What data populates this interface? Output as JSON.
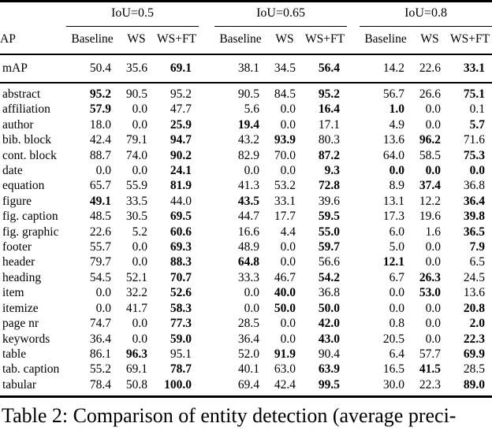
{
  "table": {
    "row_header_label": "AP",
    "groups": [
      {
        "label": "IoU=0.5"
      },
      {
        "label": "IoU=0.65"
      },
      {
        "label": "IoU=0.8"
      }
    ],
    "col_headers": [
      "Baseline",
      "WS",
      "WS+FT"
    ],
    "summary_row": {
      "label": "mAP",
      "cells": [
        {
          "t": "50.4",
          "b": false
        },
        {
          "t": "35.6",
          "b": false
        },
        {
          "t": "69.1",
          "b": true
        },
        {
          "t": "38.1",
          "b": false
        },
        {
          "t": "34.5",
          "b": false
        },
        {
          "t": "56.4",
          "b": true
        },
        {
          "t": "14.2",
          "b": false
        },
        {
          "t": "22.6",
          "b": false
        },
        {
          "t": "33.1",
          "b": true
        }
      ]
    },
    "rows": [
      {
        "label": "abstract",
        "cells": [
          {
            "t": "95.2",
            "b": true
          },
          {
            "t": "90.5",
            "b": false
          },
          {
            "t": "95.2",
            "b": false
          },
          {
            "t": "90.5",
            "b": false
          },
          {
            "t": "84.5",
            "b": false
          },
          {
            "t": "95.2",
            "b": true
          },
          {
            "t": "56.7",
            "b": false
          },
          {
            "t": "26.6",
            "b": false
          },
          {
            "t": "75.1",
            "b": true
          }
        ]
      },
      {
        "label": "affiliation",
        "cells": [
          {
            "t": "57.9",
            "b": true
          },
          {
            "t": "0.0",
            "b": false
          },
          {
            "t": "47.7",
            "b": false
          },
          {
            "t": "5.6",
            "b": false
          },
          {
            "t": "0.0",
            "b": false
          },
          {
            "t": "16.4",
            "b": true
          },
          {
            "t": "1.0",
            "b": true
          },
          {
            "t": "0.0",
            "b": false
          },
          {
            "t": "0.1",
            "b": false
          }
        ]
      },
      {
        "label": "author",
        "cells": [
          {
            "t": "18.0",
            "b": false
          },
          {
            "t": "0.0",
            "b": false
          },
          {
            "t": "25.9",
            "b": true
          },
          {
            "t": "19.4",
            "b": true
          },
          {
            "t": "0.0",
            "b": false
          },
          {
            "t": "17.1",
            "b": false
          },
          {
            "t": "4.9",
            "b": false
          },
          {
            "t": "0.0",
            "b": false
          },
          {
            "t": "5.7",
            "b": true
          }
        ]
      },
      {
        "label": "bib. block",
        "cells": [
          {
            "t": "42.4",
            "b": false
          },
          {
            "t": "79.1",
            "b": false
          },
          {
            "t": "94.7",
            "b": true
          },
          {
            "t": "43.2",
            "b": false
          },
          {
            "t": "93.9",
            "b": true
          },
          {
            "t": "80.3",
            "b": false
          },
          {
            "t": "13.6",
            "b": false
          },
          {
            "t": "96.2",
            "b": true
          },
          {
            "t": "71.6",
            "b": false
          }
        ]
      },
      {
        "label": "cont. block",
        "cells": [
          {
            "t": "88.7",
            "b": false
          },
          {
            "t": "74.0",
            "b": false
          },
          {
            "t": "90.2",
            "b": true
          },
          {
            "t": "82.9",
            "b": false
          },
          {
            "t": "70.0",
            "b": false
          },
          {
            "t": "87.2",
            "b": true
          },
          {
            "t": "64.0",
            "b": false
          },
          {
            "t": "58.5",
            "b": false
          },
          {
            "t": "75.3",
            "b": true
          }
        ]
      },
      {
        "label": "date",
        "cells": [
          {
            "t": "0.0",
            "b": false
          },
          {
            "t": "0.0",
            "b": false
          },
          {
            "t": "24.1",
            "b": true
          },
          {
            "t": "0.0",
            "b": false
          },
          {
            "t": "0.0",
            "b": false
          },
          {
            "t": "9.3",
            "b": true
          },
          {
            "t": "0.0",
            "b": true
          },
          {
            "t": "0.0",
            "b": true
          },
          {
            "t": "0.0",
            "b": true
          }
        ]
      },
      {
        "label": "equation",
        "cells": [
          {
            "t": "65.7",
            "b": false
          },
          {
            "t": "55.9",
            "b": false
          },
          {
            "t": "81.9",
            "b": true
          },
          {
            "t": "41.3",
            "b": false
          },
          {
            "t": "53.2",
            "b": false
          },
          {
            "t": "72.8",
            "b": true
          },
          {
            "t": "8.9",
            "b": false
          },
          {
            "t": "37.4",
            "b": true
          },
          {
            "t": "36.8",
            "b": false
          }
        ]
      },
      {
        "label": "figure",
        "cells": [
          {
            "t": "49.1",
            "b": true
          },
          {
            "t": "33.5",
            "b": false
          },
          {
            "t": "44.0",
            "b": false
          },
          {
            "t": "43.5",
            "b": true
          },
          {
            "t": "33.1",
            "b": false
          },
          {
            "t": "39.6",
            "b": false
          },
          {
            "t": "13.1",
            "b": false
          },
          {
            "t": "12.2",
            "b": false
          },
          {
            "t": "36.4",
            "b": true
          }
        ]
      },
      {
        "label": "fig. caption",
        "cells": [
          {
            "t": "48.5",
            "b": false
          },
          {
            "t": "30.5",
            "b": false
          },
          {
            "t": "69.5",
            "b": true
          },
          {
            "t": "44.7",
            "b": false
          },
          {
            "t": "17.7",
            "b": false
          },
          {
            "t": "59.5",
            "b": true
          },
          {
            "t": "17.3",
            "b": false
          },
          {
            "t": "19.6",
            "b": false
          },
          {
            "t": "39.8",
            "b": true
          }
        ]
      },
      {
        "label": "fig. graphic",
        "cells": [
          {
            "t": "22.6",
            "b": false
          },
          {
            "t": "5.2",
            "b": false
          },
          {
            "t": "60.6",
            "b": true
          },
          {
            "t": "16.6",
            "b": false
          },
          {
            "t": "4.4",
            "b": false
          },
          {
            "t": "55.0",
            "b": true
          },
          {
            "t": "6.0",
            "b": false
          },
          {
            "t": "1.6",
            "b": false
          },
          {
            "t": "36.5",
            "b": true
          }
        ]
      },
      {
        "label": "footer",
        "cells": [
          {
            "t": "55.7",
            "b": false
          },
          {
            "t": "0.0",
            "b": false
          },
          {
            "t": "69.3",
            "b": true
          },
          {
            "t": "48.9",
            "b": false
          },
          {
            "t": "0.0",
            "b": false
          },
          {
            "t": "59.7",
            "b": true
          },
          {
            "t": "5.0",
            "b": false
          },
          {
            "t": "0.0",
            "b": false
          },
          {
            "t": "7.9",
            "b": true
          }
        ]
      },
      {
        "label": "header",
        "cells": [
          {
            "t": "79.7",
            "b": false
          },
          {
            "t": "0.0",
            "b": false
          },
          {
            "t": "88.3",
            "b": true
          },
          {
            "t": "64.8",
            "b": true
          },
          {
            "t": "0.0",
            "b": false
          },
          {
            "t": "56.6",
            "b": false
          },
          {
            "t": "12.1",
            "b": true
          },
          {
            "t": "0.0",
            "b": false
          },
          {
            "t": "6.5",
            "b": false
          }
        ]
      },
      {
        "label": "heading",
        "cells": [
          {
            "t": "54.5",
            "b": false
          },
          {
            "t": "52.1",
            "b": false
          },
          {
            "t": "70.7",
            "b": true
          },
          {
            "t": "33.3",
            "b": false
          },
          {
            "t": "46.7",
            "b": false
          },
          {
            "t": "54.2",
            "b": true
          },
          {
            "t": "6.7",
            "b": false
          },
          {
            "t": "26.3",
            "b": true
          },
          {
            "t": "24.5",
            "b": false
          }
        ]
      },
      {
        "label": "item",
        "cells": [
          {
            "t": "0.0",
            "b": false
          },
          {
            "t": "32.2",
            "b": false
          },
          {
            "t": "52.6",
            "b": true
          },
          {
            "t": "0.0",
            "b": false
          },
          {
            "t": "40.0",
            "b": true
          },
          {
            "t": "36.8",
            "b": false
          },
          {
            "t": "0.0",
            "b": false
          },
          {
            "t": "53.0",
            "b": true
          },
          {
            "t": "13.6",
            "b": false
          }
        ]
      },
      {
        "label": "itemize",
        "cells": [
          {
            "t": "0.0",
            "b": false
          },
          {
            "t": "41.7",
            "b": false
          },
          {
            "t": "58.3",
            "b": true
          },
          {
            "t": "0.0",
            "b": false
          },
          {
            "t": "50.0",
            "b": true
          },
          {
            "t": "50.0",
            "b": true
          },
          {
            "t": "0.0",
            "b": false
          },
          {
            "t": "0.0",
            "b": false
          },
          {
            "t": "20.8",
            "b": true
          }
        ]
      },
      {
        "label": "page nr",
        "cells": [
          {
            "t": "74.7",
            "b": false
          },
          {
            "t": "0.0",
            "b": false
          },
          {
            "t": "77.3",
            "b": true
          },
          {
            "t": "28.5",
            "b": false
          },
          {
            "t": "0.0",
            "b": false
          },
          {
            "t": "42.0",
            "b": true
          },
          {
            "t": "0.8",
            "b": false
          },
          {
            "t": "0.0",
            "b": false
          },
          {
            "t": "2.0",
            "b": true
          }
        ]
      },
      {
        "label": "keywords",
        "cells": [
          {
            "t": "36.4",
            "b": false
          },
          {
            "t": "0.0",
            "b": false
          },
          {
            "t": "59.0",
            "b": true
          },
          {
            "t": "36.4",
            "b": false
          },
          {
            "t": "0.0",
            "b": false
          },
          {
            "t": "43.0",
            "b": true
          },
          {
            "t": "20.5",
            "b": false
          },
          {
            "t": "0.0",
            "b": false
          },
          {
            "t": "22.3",
            "b": true
          }
        ]
      },
      {
        "label": "table",
        "cells": [
          {
            "t": "86.1",
            "b": false
          },
          {
            "t": "96.3",
            "b": true
          },
          {
            "t": "95.1",
            "b": false
          },
          {
            "t": "52.0",
            "b": false
          },
          {
            "t": "91.9",
            "b": true
          },
          {
            "t": "90.4",
            "b": false
          },
          {
            "t": "6.4",
            "b": false
          },
          {
            "t": "57.7",
            "b": false
          },
          {
            "t": "69.9",
            "b": true
          }
        ]
      },
      {
        "label": "tab. caption",
        "cells": [
          {
            "t": "55.2",
            "b": false
          },
          {
            "t": "69.1",
            "b": false
          },
          {
            "t": "78.7",
            "b": true
          },
          {
            "t": "40.1",
            "b": false
          },
          {
            "t": "63.0",
            "b": false
          },
          {
            "t": "63.9",
            "b": true
          },
          {
            "t": "16.5",
            "b": false
          },
          {
            "t": "41.5",
            "b": true
          },
          {
            "t": "28.5",
            "b": false
          }
        ]
      },
      {
        "label": "tabular",
        "cells": [
          {
            "t": "78.4",
            "b": false
          },
          {
            "t": "50.8",
            "b": false
          },
          {
            "t": "100.0",
            "b": true
          },
          {
            "t": "69.4",
            "b": false
          },
          {
            "t": "42.4",
            "b": false
          },
          {
            "t": "99.5",
            "b": true
          },
          {
            "t": "30.0",
            "b": false
          },
          {
            "t": "22.3",
            "b": false
          },
          {
            "t": "89.0",
            "b": true
          }
        ]
      }
    ]
  },
  "caption": "Table 2: Comparison of entity detection (average preci-"
}
